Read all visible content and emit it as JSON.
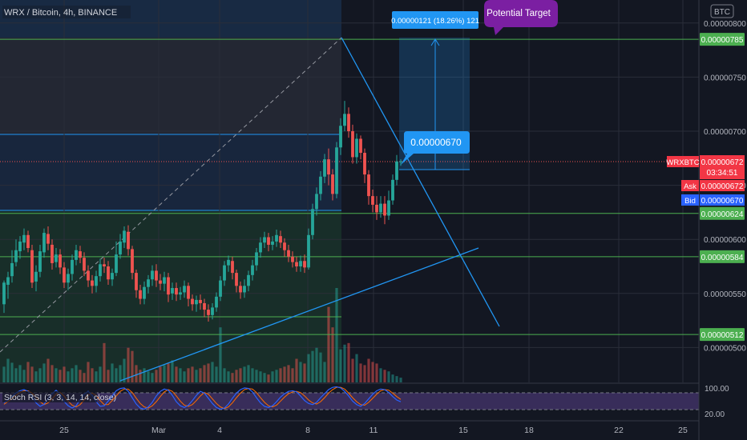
{
  "header": {
    "symbol_title": "WRX / Bitcoin, 4h, BINANCE",
    "currency_badge": "BTC"
  },
  "indicator": {
    "label": "Stoch RSI (3, 3, 14, 14, close)",
    "scale_top": "100.00",
    "scale_bottom": "20.00"
  },
  "annotations": {
    "measure_label": "0.00000121 (18.26%) 121",
    "potential_target": "Potential Target",
    "price_callout": "0.00000670"
  },
  "badges": {
    "symbol": "WRXBTC",
    "last_price": "0.00000672",
    "countdown": "03:34:51",
    "ask_label": "Ask",
    "ask_value": "0.00000672",
    "bid_label": "Bid",
    "bid_value": "0.00000670"
  },
  "levels": [
    {
      "value": "0.00000785",
      "price": 785
    },
    {
      "value": "0.00000624",
      "price": 624
    },
    {
      "value": "0.00000584",
      "price": 584
    },
    {
      "value": "0.00000512",
      "price": 512
    }
  ],
  "colors": {
    "background": "#131722",
    "up": "#26a69a",
    "down": "#ef5350",
    "level_line": "#4caf50",
    "trend_line": "#2196f3",
    "badge_red": "#f23645",
    "badge_blue": "#2962ff",
    "target_purple": "#7b1fa2"
  },
  "chart_data": {
    "type": "candlestick",
    "symbol": "WRX / Bitcoin",
    "interval": "4h",
    "exchange": "BINANCE",
    "y_ticks": [
      "0.00000800",
      "0.00000750",
      "0.00000700",
      "0.00000650",
      "0.00000600",
      "0.00000550",
      "0.00000500"
    ],
    "y_tick_values": [
      800,
      750,
      700,
      650,
      600,
      550,
      500
    ],
    "x_ticks": [
      "25",
      "Mar",
      "4",
      "8",
      "11",
      "15",
      "18",
      "22",
      "25"
    ],
    "x_tick_pos": [
      80,
      198,
      274,
      384,
      466,
      578,
      660,
      772,
      852
    ],
    "ylim": [
      488,
      815
    ],
    "candles": [
      [
        5,
        540,
        560,
        532,
        562
      ],
      [
        10,
        558,
        565,
        545,
        570
      ],
      [
        15,
        566,
        578,
        560,
        590
      ],
      [
        20,
        579,
        590,
        575,
        600
      ],
      [
        25,
        589,
        598,
        582,
        603
      ],
      [
        30,
        597,
        604,
        590,
        610
      ],
      [
        35,
        604,
        592,
        588,
        608
      ],
      [
        40,
        590,
        560,
        555,
        595
      ],
      [
        45,
        561,
        570,
        552,
        576
      ],
      [
        50,
        570,
        589,
        565,
        595
      ],
      [
        55,
        588,
        606,
        583,
        610
      ],
      [
        60,
        605,
        596,
        590,
        612
      ],
      [
        65,
        595,
        578,
        572,
        600
      ],
      [
        70,
        579,
        586,
        574,
        592
      ],
      [
        75,
        586,
        574,
        568,
        591
      ],
      [
        80,
        574,
        560,
        555,
        579
      ],
      [
        85,
        560,
        568,
        553,
        573
      ],
      [
        90,
        568,
        581,
        562,
        586
      ],
      [
        95,
        581,
        590,
        576,
        595
      ],
      [
        100,
        589,
        583,
        578,
        594
      ],
      [
        105,
        583,
        571,
        566,
        588
      ],
      [
        110,
        571,
        562,
        556,
        576
      ],
      [
        115,
        562,
        557,
        550,
        567
      ],
      [
        120,
        557,
        566,
        551,
        571
      ],
      [
        125,
        566,
        577,
        561,
        582
      ],
      [
        130,
        577,
        575,
        569,
        583
      ],
      [
        135,
        575,
        563,
        558,
        580
      ],
      [
        140,
        563,
        569,
        557,
        573
      ],
      [
        145,
        569,
        586,
        566,
        598
      ],
      [
        150,
        586,
        598,
        582,
        605
      ],
      [
        155,
        597,
        608,
        592,
        612
      ],
      [
        160,
        607,
        591,
        585,
        613
      ],
      [
        165,
        591,
        569,
        563,
        594
      ],
      [
        170,
        569,
        553,
        546,
        572
      ],
      [
        175,
        553,
        545,
        540,
        558
      ],
      [
        180,
        545,
        556,
        540,
        561
      ],
      [
        185,
        556,
        563,
        550,
        567
      ],
      [
        190,
        563,
        571,
        557,
        576
      ],
      [
        195,
        571,
        562,
        556,
        577
      ],
      [
        200,
        562,
        559,
        553,
        568
      ],
      [
        205,
        559,
        565,
        552,
        570
      ],
      [
        210,
        565,
        549,
        542,
        569
      ],
      [
        215,
        550,
        555,
        544,
        560
      ],
      [
        220,
        555,
        549,
        543,
        560
      ],
      [
        225,
        549,
        551,
        544,
        556
      ],
      [
        230,
        551,
        557,
        546,
        562
      ],
      [
        235,
        557,
        545,
        538,
        560
      ],
      [
        240,
        545,
        540,
        534,
        549
      ],
      [
        245,
        540,
        544,
        533,
        548
      ],
      [
        250,
        544,
        541,
        535,
        549
      ],
      [
        255,
        541,
        535,
        528,
        545
      ],
      [
        260,
        535,
        530,
        524,
        540
      ],
      [
        265,
        530,
        537,
        526,
        541
      ],
      [
        270,
        537,
        547,
        533,
        551
      ],
      [
        275,
        547,
        562,
        543,
        566
      ],
      [
        280,
        562,
        576,
        557,
        580
      ],
      [
        285,
        576,
        581,
        570,
        585
      ],
      [
        290,
        580,
        569,
        563,
        584
      ],
      [
        295,
        569,
        557,
        551,
        572
      ],
      [
        300,
        557,
        551,
        545,
        561
      ],
      [
        305,
        551,
        557,
        546,
        563
      ],
      [
        310,
        557,
        567,
        552,
        571
      ],
      [
        315,
        567,
        576,
        562,
        581
      ],
      [
        320,
        576,
        588,
        571,
        592
      ],
      [
        325,
        588,
        597,
        583,
        602
      ],
      [
        330,
        597,
        602,
        592,
        607
      ],
      [
        335,
        602,
        595,
        589,
        606
      ],
      [
        340,
        595,
        598,
        590,
        603
      ],
      [
        345,
        598,
        604,
        593,
        609
      ],
      [
        350,
        603,
        597,
        592,
        608
      ],
      [
        355,
        597,
        590,
        584,
        601
      ],
      [
        360,
        590,
        584,
        579,
        595
      ],
      [
        365,
        584,
        579,
        574,
        589
      ],
      [
        370,
        579,
        575,
        570,
        584
      ],
      [
        375,
        575,
        580,
        570,
        585
      ],
      [
        380,
        580,
        574,
        569,
        586
      ],
      [
        385,
        574,
        604,
        572,
        610
      ],
      [
        390,
        604,
        628,
        600,
        633
      ],
      [
        395,
        628,
        642,
        622,
        648
      ],
      [
        400,
        642,
        658,
        636,
        663
      ],
      [
        405,
        658,
        674,
        652,
        679
      ],
      [
        410,
        674,
        660,
        650,
        684
      ],
      [
        415,
        660,
        642,
        636,
        665
      ],
      [
        420,
        642,
        685,
        638,
        690
      ],
      [
        425,
        685,
        705,
        678,
        712
      ],
      [
        430,
        705,
        716,
        700,
        728
      ],
      [
        435,
        716,
        700,
        694,
        722
      ],
      [
        440,
        700,
        676,
        670,
        706
      ],
      [
        445,
        676,
        693,
        670,
        698
      ],
      [
        450,
        693,
        680,
        674,
        696
      ],
      [
        455,
        680,
        660,
        652,
        684
      ],
      [
        460,
        660,
        640,
        632,
        664
      ],
      [
        465,
        640,
        632,
        625,
        646
      ],
      [
        470,
        632,
        625,
        618,
        640
      ],
      [
        475,
        625,
        633,
        620,
        640
      ],
      [
        480,
        633,
        622,
        614,
        640
      ],
      [
        485,
        622,
        636,
        618,
        645
      ],
      [
        490,
        636,
        655,
        632,
        660
      ],
      [
        495,
        655,
        672,
        650,
        678
      ],
      [
        500,
        672,
        672,
        668,
        674
      ]
    ],
    "volume_scale": "relative",
    "volume_values": [
      20,
      30,
      25,
      18,
      22,
      16,
      26,
      20,
      14,
      18,
      24,
      30,
      22,
      18,
      16,
      20,
      14,
      18,
      22,
      16,
      12,
      26,
      18,
      14,
      20,
      50,
      16,
      24,
      18,
      22,
      30,
      44,
      40,
      22,
      16,
      18,
      14,
      12,
      16,
      20,
      22,
      24,
      28,
      20,
      18,
      14,
      18,
      20,
      16,
      18,
      22,
      24,
      26,
      20,
      70,
      18,
      14,
      12,
      16,
      18,
      20,
      22,
      18,
      16,
      14,
      12,
      10,
      14,
      16,
      18,
      20,
      22,
      18,
      30,
      26,
      24,
      36,
      40,
      44,
      38,
      26,
      96,
      70,
      120,
      42,
      48,
      50,
      30,
      36,
      24,
      22,
      30,
      26,
      24,
      18,
      16,
      14,
      10,
      8,
      6
    ],
    "stoch_k": [
      40,
      50,
      62,
      75,
      82,
      86,
      80,
      62,
      40,
      28,
      35,
      55,
      72,
      84,
      70,
      45,
      30,
      22,
      30,
      52,
      70,
      80,
      66,
      44,
      28,
      30,
      46,
      64,
      82,
      90,
      92,
      80,
      58,
      36,
      22,
      18,
      26,
      42,
      64,
      80,
      88,
      84,
      66,
      44,
      30,
      24,
      32,
      48,
      66,
      80,
      74,
      56,
      38,
      24,
      18,
      22,
      36,
      56,
      74,
      86,
      92,
      90,
      78,
      58,
      40,
      28,
      24,
      30,
      44,
      60,
      72,
      80,
      82,
      78,
      64,
      48,
      38,
      34,
      42,
      58,
      72,
      86,
      94,
      96,
      92,
      80,
      64,
      46,
      34,
      28,
      38,
      54,
      70,
      82,
      88,
      86,
      76,
      62,
      50,
      44
    ],
    "stoch_d": [
      35,
      45,
      55,
      66,
      76,
      82,
      82,
      74,
      60,
      44,
      34,
      40,
      54,
      70,
      76,
      64,
      46,
      32,
      26,
      34,
      50,
      66,
      74,
      66,
      48,
      34,
      34,
      48,
      64,
      80,
      88,
      88,
      76,
      56,
      38,
      26,
      22,
      30,
      44,
      62,
      78,
      86,
      80,
      64,
      46,
      32,
      28,
      34,
      48,
      64,
      76,
      70,
      54,
      38,
      26,
      20,
      26,
      40,
      58,
      74,
      86,
      90,
      88,
      76,
      58,
      42,
      30,
      26,
      32,
      46,
      60,
      72,
      78,
      80,
      76,
      64,
      50,
      40,
      36,
      44,
      58,
      74,
      86,
      94,
      94,
      88,
      74,
      58,
      44,
      34,
      32,
      42,
      56,
      70,
      82,
      86,
      84,
      74,
      62,
      52
    ]
  }
}
